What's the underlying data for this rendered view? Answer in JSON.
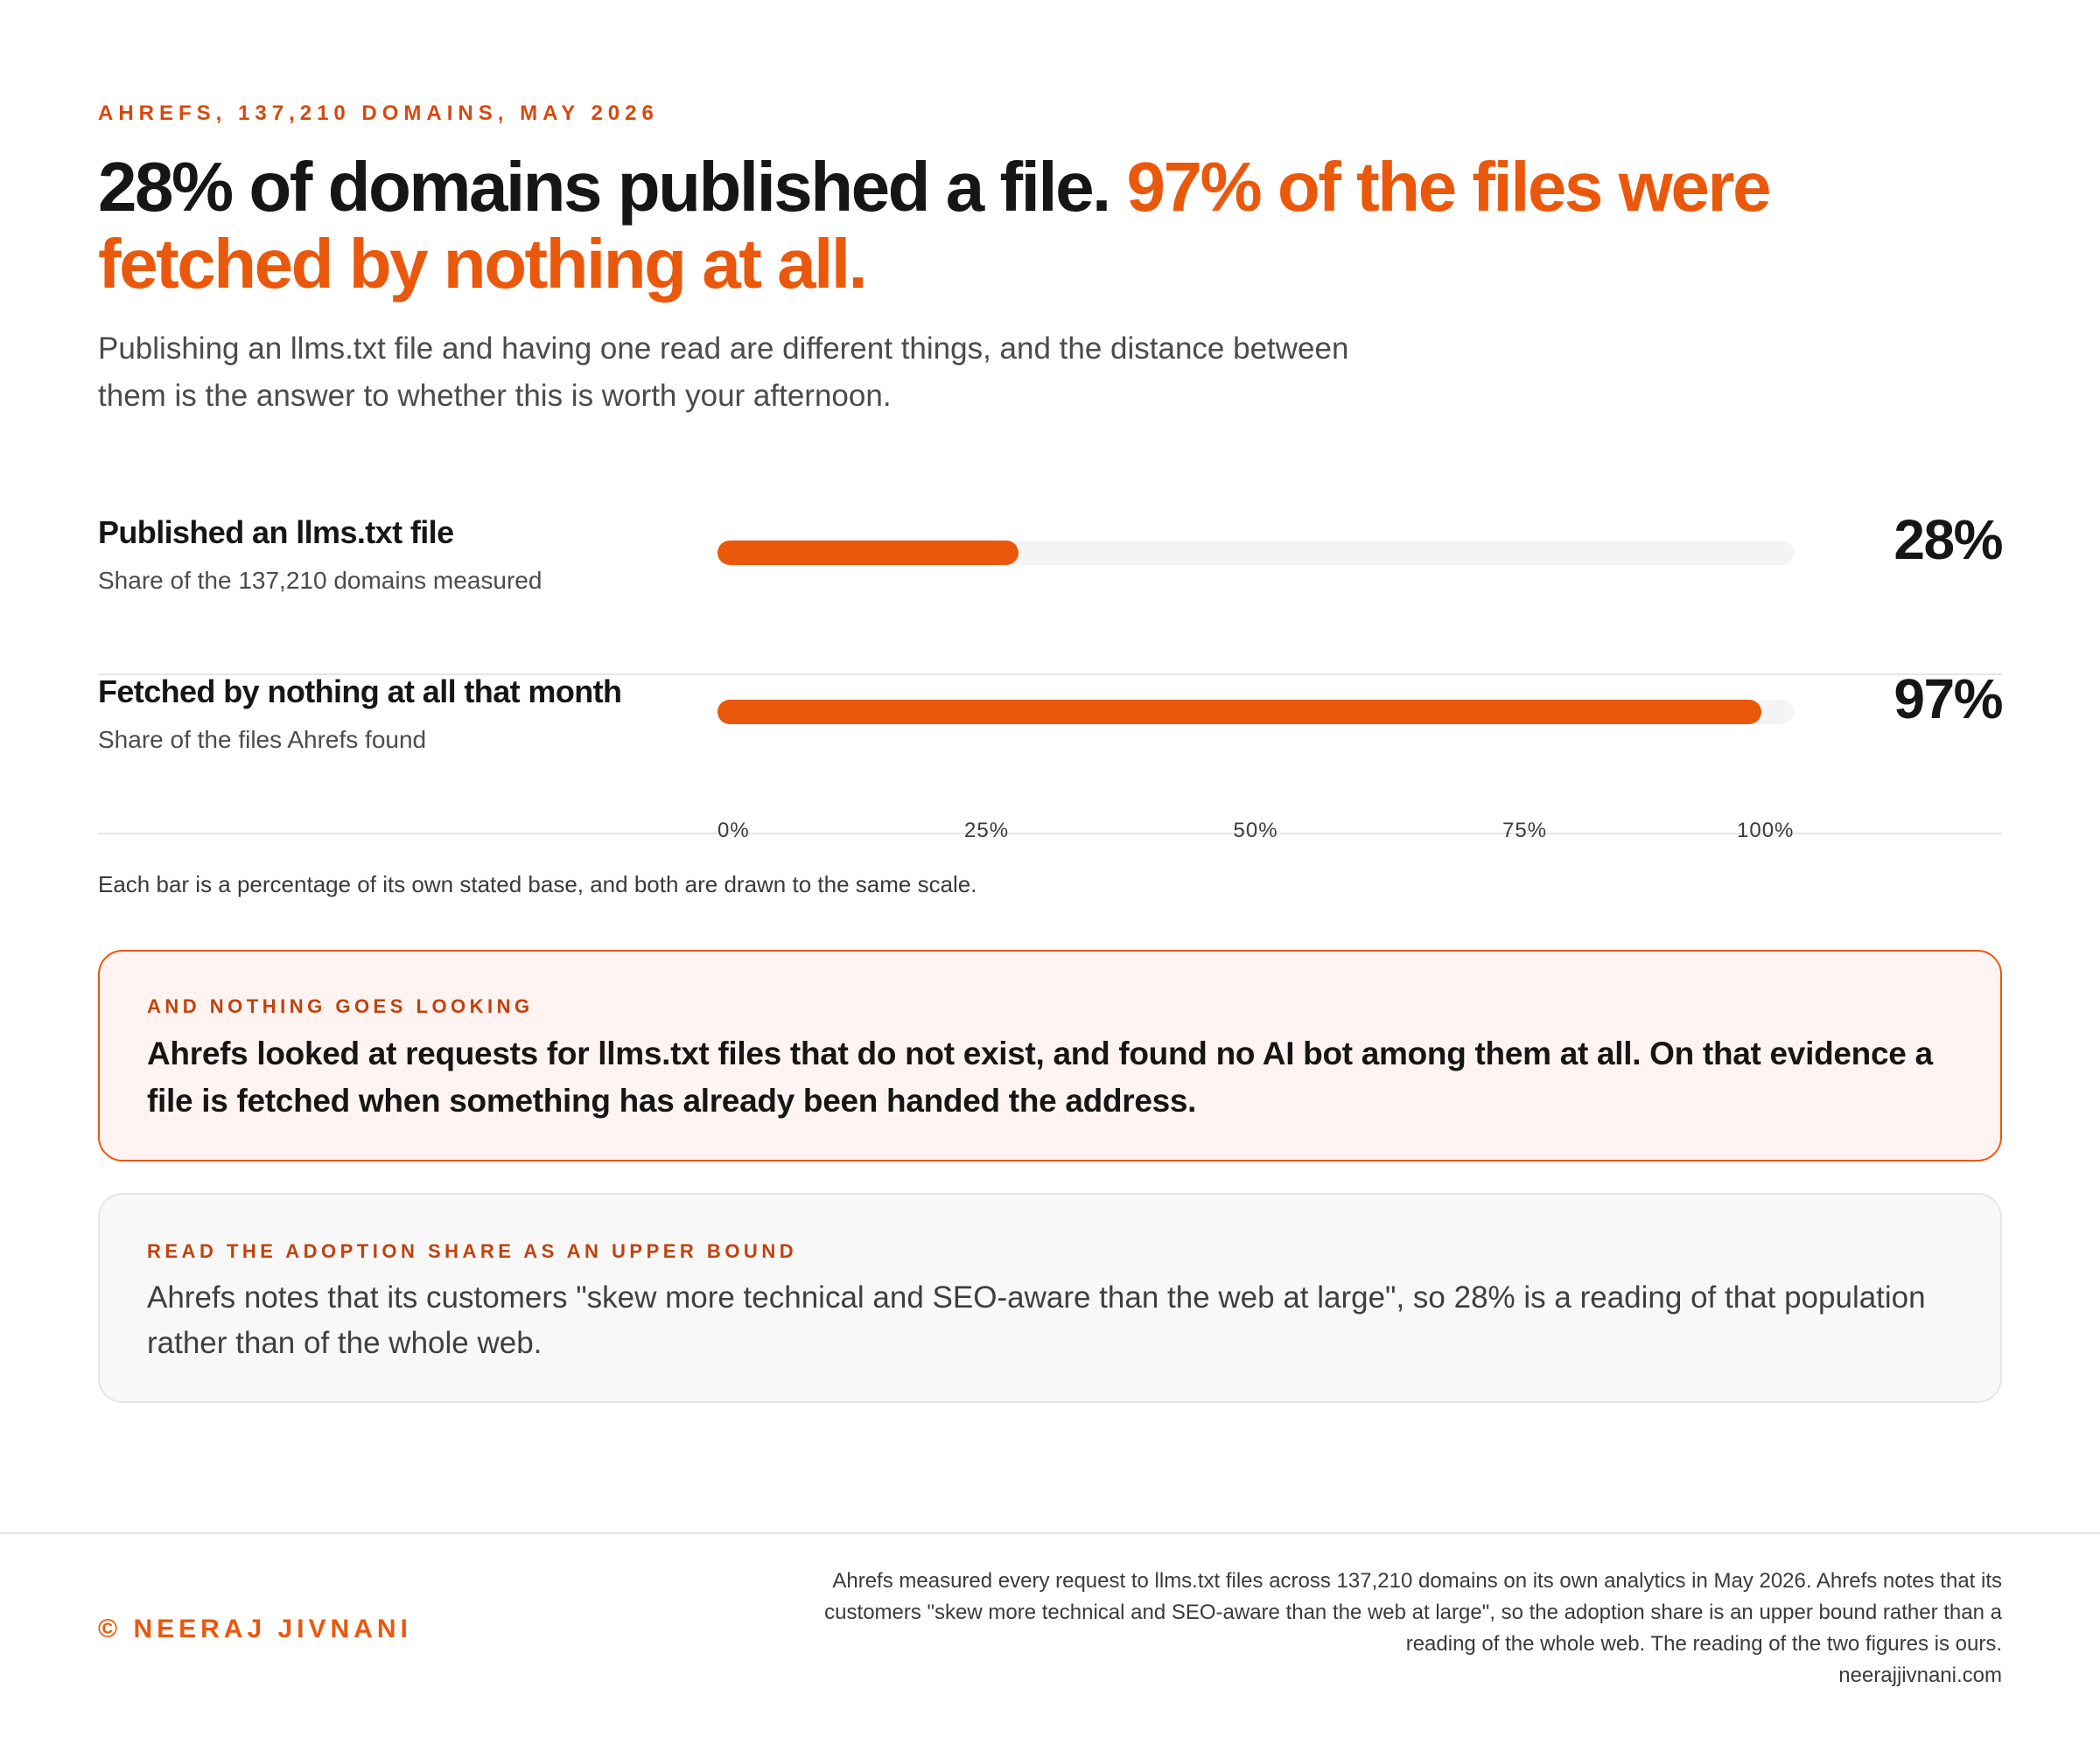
{
  "eyebrow": "AHREFS, 137,210 DOMAINS, MAY 2026",
  "headline": {
    "lead": "28% of domains published a file.",
    "accent": "97% of the files were fetched by nothing at all."
  },
  "subhead": "Publishing an llms.txt file and having one read are different things, and the distance between them is the answer to whether this is worth your afternoon.",
  "chart_data": {
    "type": "bar",
    "orientation": "horizontal",
    "categories": [
      "Published an llms.txt file",
      "Fetched by nothing at all that month"
    ],
    "subtitles": [
      "Share of the 137,210 domains measured",
      "Share of the files Ahrefs found"
    ],
    "values": [
      28,
      97
    ],
    "value_labels": [
      "28%",
      "97%"
    ],
    "xlim": [
      0,
      100
    ],
    "ticks": [
      0,
      25,
      50,
      75,
      100
    ],
    "tick_labels": [
      "0%",
      "25%",
      "50%",
      "75%",
      "100%"
    ],
    "note": "Each bar is a percentage of its own stated base, and both are drawn to the same scale.",
    "bar_color": "#ea580c",
    "track_color": "#f4f4f4"
  },
  "callouts": [
    {
      "kicker": "AND NOTHING GOES LOOKING",
      "body": "Ahrefs looked at requests for llms.txt files that do not exist, and found no AI bot among them at all. On that evidence a file is fetched when something has already been handed the address."
    },
    {
      "kicker": "READ THE ADOPTION SHARE AS AN UPPER BOUND",
      "body": "Ahrefs notes that its customers \"skew more technical and SEO-aware than the web at large\", so 28% is a reading of that population rather than of the whole web."
    }
  ],
  "footer": {
    "credit": "© NEERAJ JIVNANI",
    "source": "Ahrefs measured every request to llms.txt files across 137,210 domains on its own analytics in May 2026. Ahrefs notes that its customers \"skew more technical and SEO-aware than the web at large\", so the adoption share is an upper bound rather than a reading of the whole web. The reading of the two figures is ours.",
    "site": "neerajjivnani.com"
  },
  "colors": {
    "accent": "#ea580c",
    "kicker": "#d9480f"
  }
}
